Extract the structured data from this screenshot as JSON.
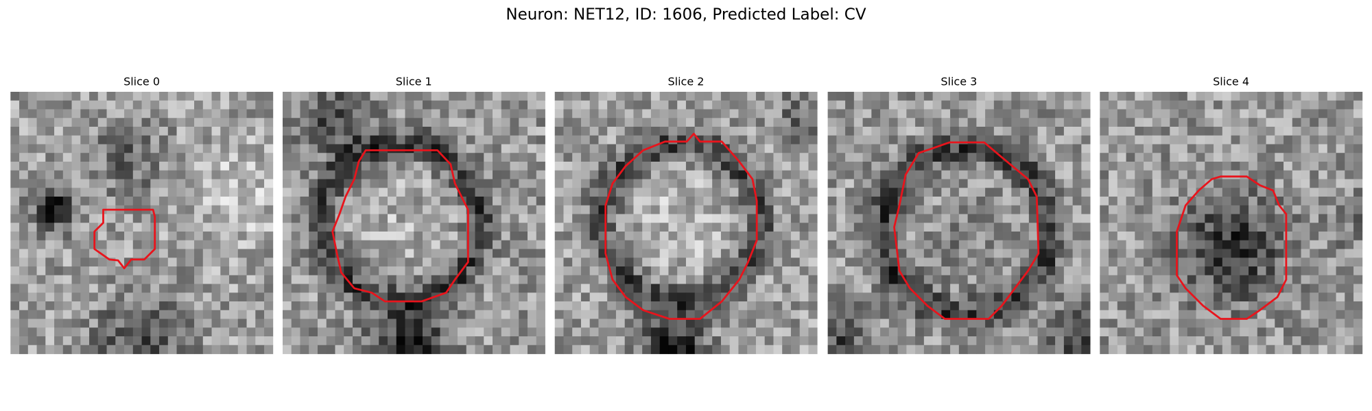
{
  "header": {
    "title": "Neuron: NET12, ID: 1606, Predicted Label: CV"
  },
  "panels": [
    {
      "title": "Slice 0"
    },
    {
      "title": "Slice 1"
    },
    {
      "title": "Slice 2"
    },
    {
      "title": "Slice 3"
    },
    {
      "title": "Slice 4"
    }
  ]
}
